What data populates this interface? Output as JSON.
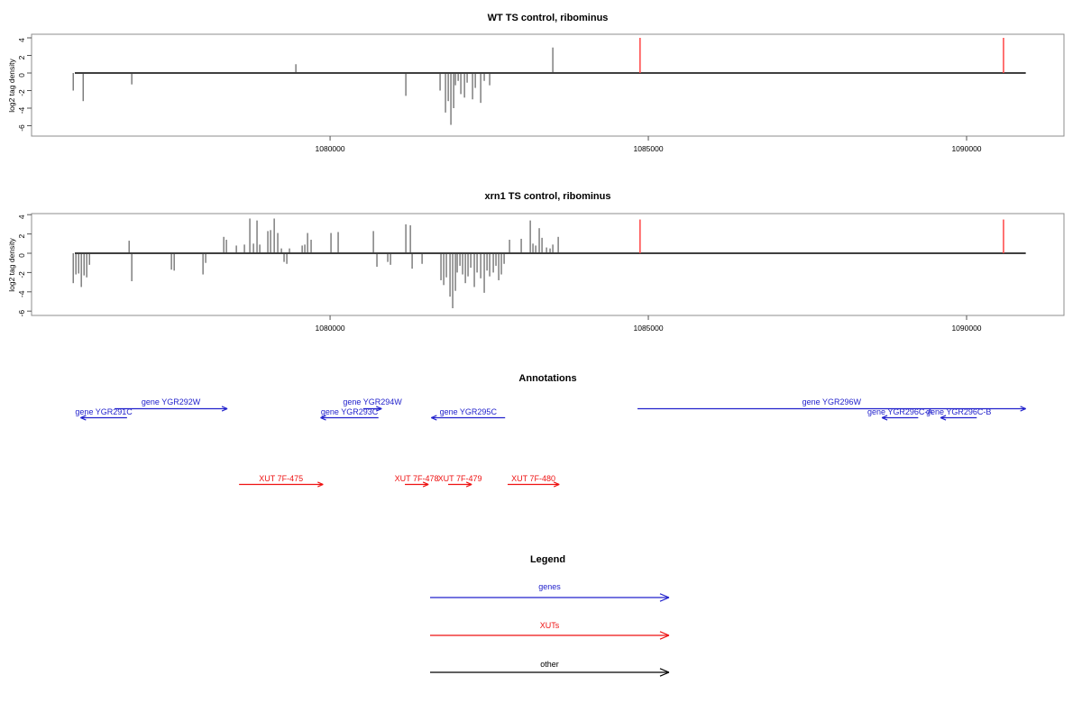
{
  "chart_data": {
    "type": "bar",
    "subtype": "genome-coverage-tracks",
    "x_axis": {
      "min": 1075310,
      "max": 1091530,
      "ticks": [
        1080000,
        1085000,
        1090000
      ],
      "data_start": 1075990,
      "data_end": 1090930
    },
    "y_axis": {
      "min": -7.05,
      "max": 4.4,
      "ticks": [
        4,
        2,
        0,
        -2,
        -4,
        -6
      ]
    },
    "panels": [
      {
        "title": "WT TS control, ribominus",
        "ylabel": "log2 tag density",
        "spikes": [
          [
            1075964,
            -2
          ],
          [
            1076120,
            -3.2
          ],
          [
            1076884,
            -1.3
          ],
          [
            1079462,
            1
          ],
          [
            1081190,
            -2.6
          ],
          [
            1081728,
            -2
          ],
          [
            1081813,
            -4.5
          ],
          [
            1081856,
            -3.2
          ],
          [
            1081898,
            -5.9
          ],
          [
            1081941,
            -4
          ],
          [
            1081969,
            -1.4
          ],
          [
            1082012,
            -0.9
          ],
          [
            1082054,
            -2.4
          ],
          [
            1082111,
            -2.8
          ],
          [
            1082153,
            -1.1
          ],
          [
            1082238,
            -3
          ],
          [
            1082281,
            -1.7
          ],
          [
            1082366,
            -3.4
          ],
          [
            1082422,
            -0.9
          ],
          [
            1082507,
            -1.4
          ],
          [
            1083499,
            2.9
          ]
        ],
        "markers": {
          "positions": [
            1084870,
            1090580
          ],
          "top": 4.0
        }
      },
      {
        "title": "xrn1 TS control, ribominus",
        "ylabel": "log2 tag density",
        "spikes": [
          [
            1075964,
            -3.1
          ],
          [
            1076006,
            -2.2
          ],
          [
            1076049,
            -2.1
          ],
          [
            1076091,
            -3.5
          ],
          [
            1076134,
            -2.3
          ],
          [
            1076176,
            -2.5
          ],
          [
            1076219,
            -1.2
          ],
          [
            1076842,
            1.3
          ],
          [
            1076884,
            -2.9
          ],
          [
            1077507,
            -1.7
          ],
          [
            1077550,
            -1.8
          ],
          [
            1078003,
            -2.2
          ],
          [
            1078045,
            -1
          ],
          [
            1078329,
            1.7
          ],
          [
            1078371,
            1.4
          ],
          [
            1078527,
            0.8
          ],
          [
            1078654,
            0.9
          ],
          [
            1078739,
            3.6
          ],
          [
            1078796,
            1
          ],
          [
            1078852,
            3.4
          ],
          [
            1078895,
            0.9
          ],
          [
            1079022,
            2.3
          ],
          [
            1079065,
            2.4
          ],
          [
            1079122,
            3.6
          ],
          [
            1079178,
            2.1
          ],
          [
            1079235,
            0.5
          ],
          [
            1079277,
            -0.9
          ],
          [
            1079320,
            -1.1
          ],
          [
            1079362,
            0.5
          ],
          [
            1079561,
            0.8
          ],
          [
            1079603,
            0.9
          ],
          [
            1079646,
            2.1
          ],
          [
            1079702,
            1.4
          ],
          [
            1080014,
            2.1
          ],
          [
            1080127,
            2.2
          ],
          [
            1080680,
            2.3
          ],
          [
            1080736,
            -1.4
          ],
          [
            1080906,
            -0.9
          ],
          [
            1080949,
            -1.2
          ],
          [
            1081190,
            3
          ],
          [
            1081261,
            2.9
          ],
          [
            1081289,
            -1.6
          ],
          [
            1081445,
            -1.1
          ],
          [
            1081742,
            -2.8
          ],
          [
            1081785,
            -3.3
          ],
          [
            1081827,
            -2.5
          ],
          [
            1081884,
            -4.5
          ],
          [
            1081926,
            -5.7
          ],
          [
            1081969,
            -3.9
          ],
          [
            1081997,
            -2
          ],
          [
            1082040,
            -1.3
          ],
          [
            1082082,
            -2.2
          ],
          [
            1082125,
            -3.1
          ],
          [
            1082167,
            -2.4
          ],
          [
            1082210,
            -1.5
          ],
          [
            1082266,
            -3.5
          ],
          [
            1082309,
            -2
          ],
          [
            1082366,
            -2.6
          ],
          [
            1082422,
            -4.1
          ],
          [
            1082465,
            -1.8
          ],
          [
            1082507,
            -2.4
          ],
          [
            1082564,
            -2
          ],
          [
            1082606,
            -1.3
          ],
          [
            1082649,
            -2.8
          ],
          [
            1082691,
            -2.2
          ],
          [
            1082734,
            -1.1
          ],
          [
            1082819,
            1.4
          ],
          [
            1083003,
            1.5
          ],
          [
            1083145,
            3.4
          ],
          [
            1083187,
            1
          ],
          [
            1083230,
            0.8
          ],
          [
            1083286,
            2.6
          ],
          [
            1083329,
            1.6
          ],
          [
            1083400,
            0.6
          ],
          [
            1083456,
            0.5
          ],
          [
            1083499,
            0.9
          ],
          [
            1083584,
            1.7
          ]
        ],
        "markers": {
          "positions": [
            1084870,
            1090580
          ],
          "top": 3.5
        }
      }
    ],
    "annotations": {
      "title": "Annotations",
      "genes": [
        {
          "label": "gene YGR291C",
          "start": 1076810,
          "end": 1076080,
          "strand": "-"
        },
        {
          "label": "gene YGR292W",
          "start": 1076615,
          "end": 1078385,
          "strand": "+"
        },
        {
          "label": "gene YGR293C",
          "start": 1080760,
          "end": 1079850,
          "strand": "-"
        },
        {
          "label": "gene YGR294W",
          "start": 1080520,
          "end": 1080810,
          "strand": "+"
        },
        {
          "label": "gene YGR295C",
          "start": 1082750,
          "end": 1081590,
          "strand": "-"
        },
        {
          "label": "gene YGR296W",
          "start": 1084830,
          "end": 1090930,
          "strand": "+"
        },
        {
          "label": "gene YGR296C-A",
          "start": 1089240,
          "end": 1088670,
          "strand": "-"
        },
        {
          "label": "gene YGR296C-B",
          "start": 1090160,
          "end": 1089590,
          "strand": "-"
        }
      ],
      "xuts": [
        {
          "label": "XUT 7F-475",
          "start": 1078570,
          "end": 1079890,
          "strand": "+"
        },
        {
          "label": "XUT 7F-478",
          "start": 1081175,
          "end": 1081545,
          "strand": "+"
        },
        {
          "label": "XUT 7F-479",
          "start": 1081855,
          "end": 1082225,
          "strand": "+"
        },
        {
          "label": "XUT 7F-480",
          "start": 1082790,
          "end": 1083600,
          "strand": "+"
        }
      ]
    },
    "legend": {
      "title": "Legend",
      "items": [
        {
          "label": "genes",
          "color": "#2222cc"
        },
        {
          "label": "XUTs",
          "color": "#ee1111"
        },
        {
          "label": "other",
          "color": "#000000"
        }
      ]
    },
    "colors": {
      "gene": "#2222cc",
      "xut": "#ee1111",
      "spike": "#3f3f3f",
      "marker": "#ff4444",
      "box": "#8c8c8c",
      "tick": "#555555",
      "text": "#000000"
    }
  }
}
